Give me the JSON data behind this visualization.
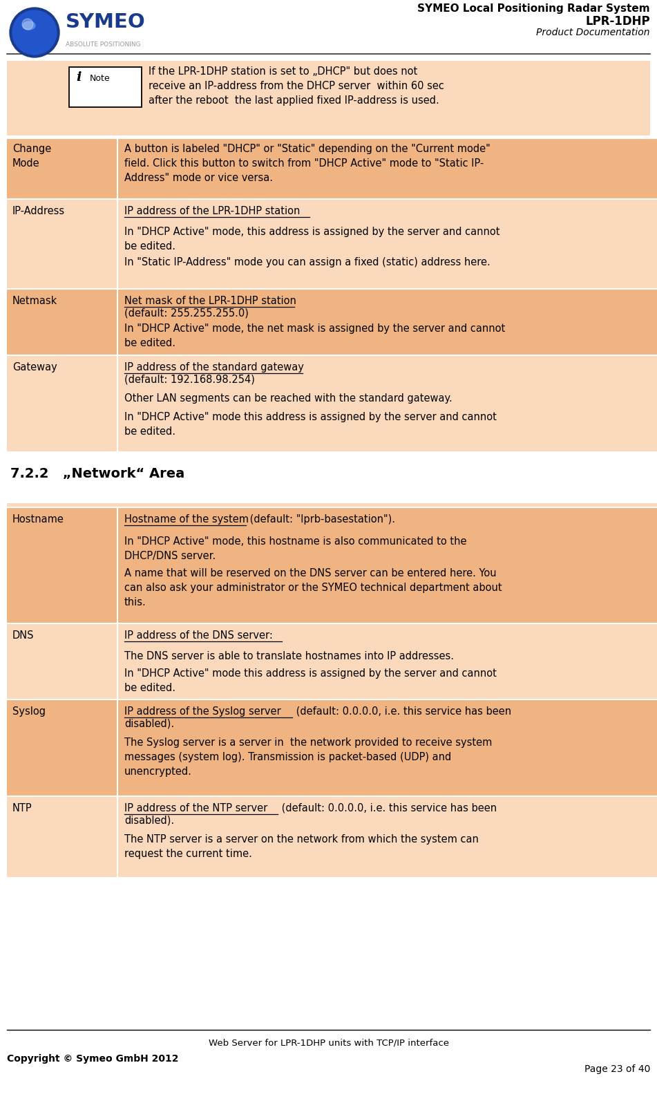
{
  "header_title_line1": "SYMEO Local Positioning Radar System",
  "header_title_line2": "LPR-1DHP",
  "header_title_line3": "Product Documentation",
  "bg_color": "#ffffff",
  "orange_bg": "#f0b482",
  "light_orange_bg": "#fad9bc",
  "note_bg": "#fad9bc",
  "section_title": "7.2.2   „Network“ Area",
  "footer_center": "Web Server for LPR-1DHP units with TCP/IP interface",
  "footer_left": "Copyright © Symeo GmbH 2012",
  "footer_right": "Page 23 of 40"
}
